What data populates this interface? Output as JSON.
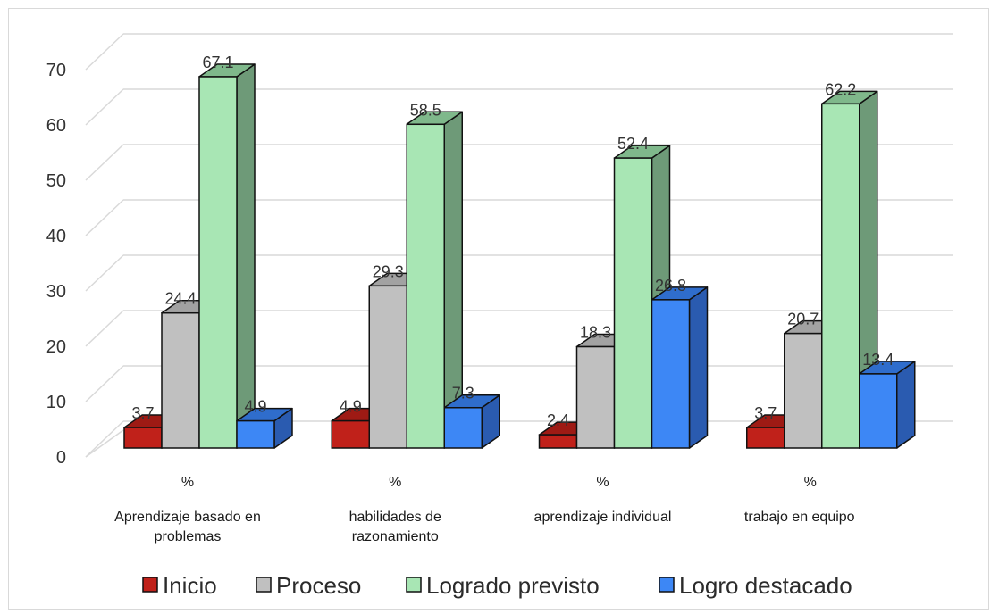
{
  "chart_data": {
    "type": "bar",
    "three_d": true,
    "categories": [
      {
        "top": "%",
        "lines": [
          "Aprendizaje basado en",
          "problemas"
        ]
      },
      {
        "top": "%",
        "lines": [
          "habilidades de",
          "razonamiento"
        ]
      },
      {
        "top": "%",
        "lines": [
          "aprendizaje individual"
        ]
      },
      {
        "top": "%",
        "lines": [
          "trabajo en equipo"
        ]
      }
    ],
    "series": [
      {
        "name": "Inicio",
        "values": [
          3.7,
          4.9,
          2.4,
          3.7
        ],
        "color": "#c0211a",
        "side": "#8a1510",
        "top": "#9e1a14"
      },
      {
        "name": "Proceso",
        "values": [
          24.4,
          29.3,
          18.3,
          20.7
        ],
        "color": "#c0c0c0",
        "side": "#8e8e8e",
        "top": "#a2a2a2"
      },
      {
        "name": "Logrado previsto",
        "values": [
          67.1,
          58.5,
          52.4,
          62.2
        ],
        "color": "#a8e6b4",
        "side": "#6e9a78",
        "top": "#7fb88b"
      },
      {
        "name": "Logro destacado",
        "values": [
          4.9,
          7.3,
          26.8,
          13.4
        ],
        "color": "#3d87f5",
        "side": "#2a5bb0",
        "top": "#2f6dcc"
      }
    ],
    "y_ticks": [
      "0",
      "10",
      "20",
      "30",
      "40",
      "50",
      "60",
      "70"
    ],
    "ylim": [
      0,
      70
    ],
    "grid": true,
    "legend_position": "bottom"
  }
}
